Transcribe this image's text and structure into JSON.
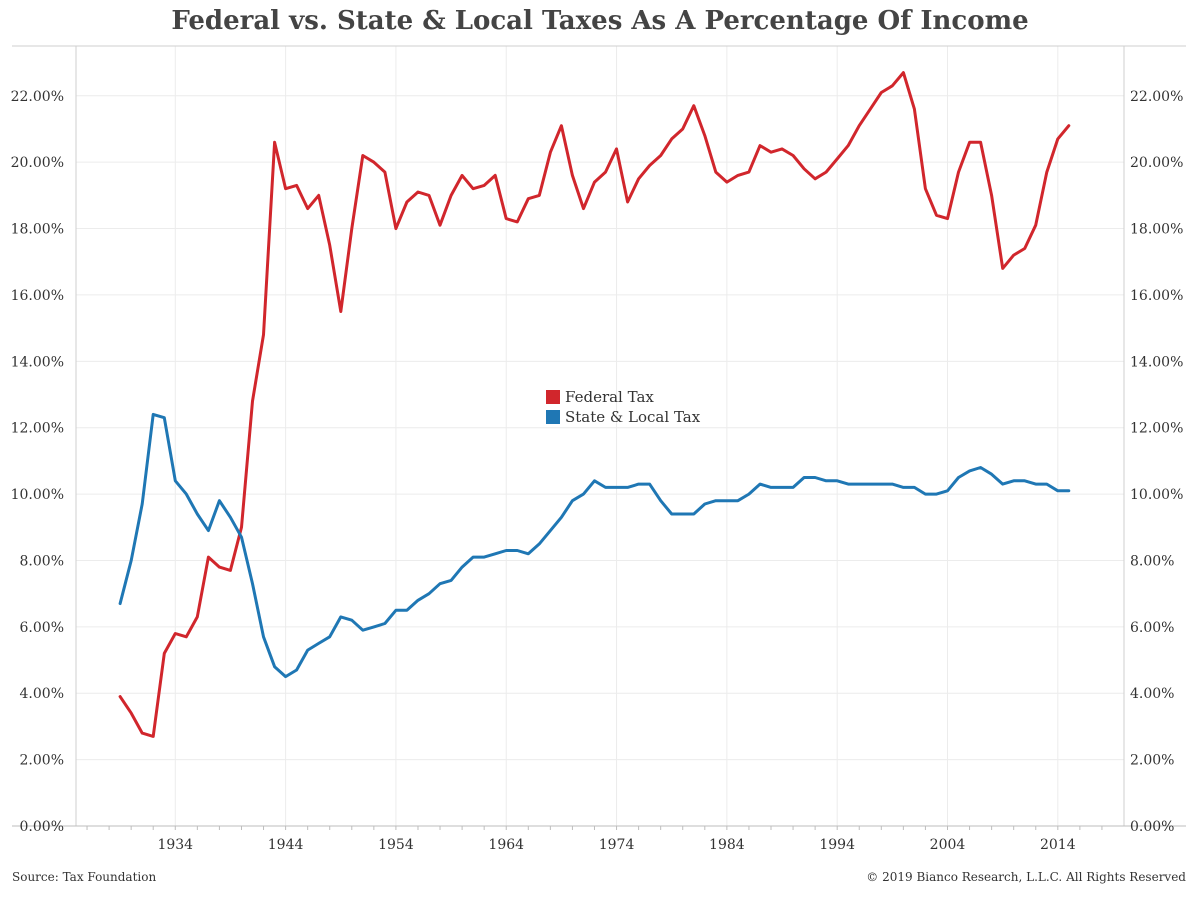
{
  "title": "Federal vs. State & Local Taxes As A Percentage Of Income",
  "source": "Source: Tax Foundation",
  "copyright": "© 2019 Bianco Research, L.L.C. All Rights Reserved",
  "chart_data": {
    "type": "line",
    "title": "Federal vs. State & Local Taxes As A Percentage Of Income",
    "xlabel": "",
    "ylabel": "",
    "xlim": [
      1925,
      2020
    ],
    "ylim": [
      0,
      23.5
    ],
    "x_ticks": [
      1934,
      1944,
      1954,
      1964,
      1974,
      1984,
      1994,
      2004,
      2014
    ],
    "y_ticks": [
      "0.00%",
      "2.00%",
      "4.00%",
      "6.00%",
      "8.00%",
      "10.00%",
      "12.00%",
      "14.00%",
      "16.00%",
      "18.00%",
      "20.00%",
      "22.00%"
    ],
    "y_tick_values": [
      0,
      2,
      4,
      6,
      8,
      10,
      12,
      14,
      16,
      18,
      20,
      22
    ],
    "grid": true,
    "legend_placement": "center",
    "x": [
      1929,
      1930,
      1931,
      1932,
      1933,
      1934,
      1935,
      1936,
      1937,
      1938,
      1939,
      1940,
      1941,
      1942,
      1943,
      1944,
      1945,
      1946,
      1947,
      1948,
      1949,
      1950,
      1951,
      1952,
      1953,
      1954,
      1955,
      1956,
      1957,
      1958,
      1959,
      1960,
      1961,
      1962,
      1963,
      1964,
      1965,
      1966,
      1967,
      1968,
      1969,
      1970,
      1971,
      1972,
      1973,
      1974,
      1975,
      1976,
      1977,
      1978,
      1979,
      1980,
      1981,
      1982,
      1983,
      1984,
      1985,
      1986,
      1987,
      1988,
      1989,
      1990,
      1991,
      1992,
      1993,
      1994,
      1995,
      1996,
      1997,
      1998,
      1999,
      2000,
      2001,
      2002,
      2003,
      2004,
      2005,
      2006,
      2007,
      2008,
      2009,
      2010,
      2011,
      2012,
      2013,
      2014,
      2015
    ],
    "series": [
      {
        "name": "Federal Tax",
        "color": "#d1262c",
        "values": [
          3.9,
          3.4,
          2.8,
          2.7,
          5.2,
          5.8,
          5.7,
          6.3,
          8.1,
          7.8,
          7.7,
          9.0,
          12.8,
          14.8,
          20.6,
          19.2,
          19.3,
          18.6,
          19.0,
          17.5,
          15.5,
          18.0,
          20.2,
          20.0,
          19.7,
          18.0,
          18.8,
          19.1,
          19.0,
          18.1,
          19.0,
          19.6,
          19.2,
          19.3,
          19.6,
          18.3,
          18.2,
          18.9,
          19.0,
          20.3,
          21.1,
          19.6,
          18.6,
          19.4,
          19.7,
          20.4,
          18.8,
          19.5,
          19.9,
          20.2,
          20.7,
          21.0,
          21.7,
          20.8,
          19.7,
          19.4,
          19.6,
          19.7,
          20.5,
          20.3,
          20.4,
          20.2,
          19.8,
          19.5,
          19.7,
          20.1,
          20.5,
          21.1,
          21.6,
          22.1,
          22.3,
          22.7,
          21.6,
          19.2,
          18.4,
          18.3,
          19.7,
          20.6,
          20.6,
          19.0,
          16.8,
          17.2,
          17.4,
          18.1,
          19.7,
          20.7,
          21.1
        ]
      },
      {
        "name": "State & Local Tax",
        "color": "#1f77b4",
        "values": [
          6.7,
          8.0,
          9.7,
          12.4,
          12.3,
          10.4,
          10.0,
          9.4,
          8.9,
          9.8,
          9.3,
          8.7,
          7.3,
          5.7,
          4.8,
          4.5,
          4.7,
          5.3,
          5.5,
          5.7,
          6.3,
          6.2,
          5.9,
          6.0,
          6.1,
          6.5,
          6.5,
          6.8,
          7.0,
          7.3,
          7.4,
          7.8,
          8.1,
          8.1,
          8.2,
          8.3,
          8.3,
          8.2,
          8.5,
          8.9,
          9.3,
          9.8,
          10.0,
          10.4,
          10.2,
          10.2,
          10.2,
          10.3,
          10.3,
          9.8,
          9.4,
          9.4,
          9.4,
          9.7,
          9.8,
          9.8,
          9.8,
          10.0,
          10.3,
          10.2,
          10.2,
          10.2,
          10.5,
          10.5,
          10.4,
          10.4,
          10.3,
          10.3,
          10.3,
          10.3,
          10.3,
          10.2,
          10.2,
          10.0,
          10.0,
          10.1,
          10.5,
          10.7,
          10.8,
          10.6,
          10.3,
          10.4,
          10.4,
          10.3,
          10.3,
          10.1,
          10.1
        ]
      }
    ]
  }
}
